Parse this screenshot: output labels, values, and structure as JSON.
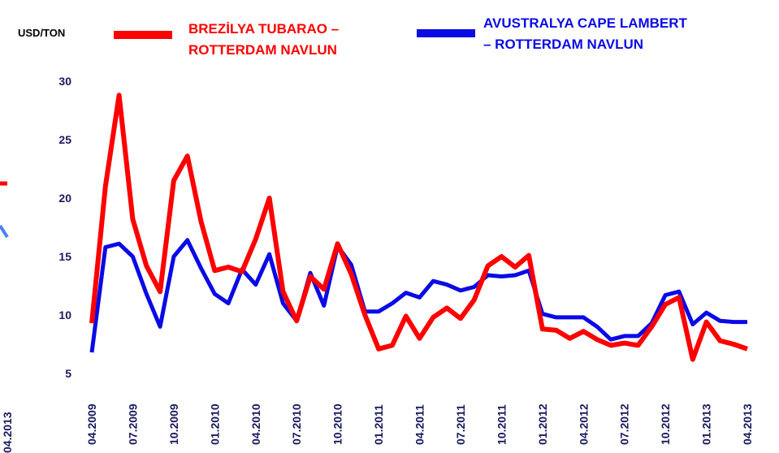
{
  "chart_data": {
    "type": "line",
    "y_unit": "USD/TON",
    "x": [
      "04.2009",
      null,
      null,
      "07.2009",
      null,
      null,
      "10.2009",
      null,
      null,
      "01.2010",
      null,
      null,
      "04.2010",
      null,
      null,
      "07.2010",
      null,
      null,
      "10.2010",
      null,
      null,
      "01.2011",
      null,
      null,
      "04.2011",
      null,
      null,
      "07.2011",
      null,
      null,
      "10.2011",
      null,
      null,
      "01.2012",
      null,
      null,
      "04.2012",
      null,
      null,
      "07.2012",
      null,
      null,
      "10.2012",
      null,
      null,
      "01.2013",
      null,
      null,
      "04.2013"
    ],
    "series": [
      {
        "name": [
          "BREZİLYA TUBARAO –",
          "ROTTERDAM NAVLUN"
        ],
        "color": "#ff0000",
        "values": [
          9.3,
          21,
          28.8,
          18.2,
          14.2,
          12,
          21.5,
          23.6,
          18,
          13.8,
          14.1,
          13.7,
          16.5,
          20,
          12,
          9.5,
          13.3,
          12.2,
          16.1,
          13.5,
          10,
          7.1,
          7.4,
          9.9,
          8,
          9.8,
          10.6,
          9.7,
          11.3,
          14.2,
          15,
          14.1,
          15.1,
          8.8,
          8.7,
          8,
          8.6,
          7.9,
          7.4,
          7.6,
          7.4,
          9,
          10.9,
          11.5,
          6.2,
          9.4,
          7.8,
          7.5,
          7.1
        ]
      },
      {
        "name": [
          "AVUSTRALYA CAPE LAMBERT",
          "– ROTTERDAM NAVLUN"
        ],
        "color": "#0a0ae6",
        "values": [
          6.8,
          15.8,
          16.1,
          15,
          11.8,
          9,
          15,
          16.4,
          14,
          11.8,
          11,
          13.9,
          12.6,
          15.2,
          11,
          9.5,
          13.6,
          10.8,
          15.9,
          14.3,
          10.3,
          10.3,
          11,
          11.9,
          11.5,
          12.9,
          12.6,
          12.1,
          12.4,
          13.4,
          13.3,
          13.4,
          13.8,
          10.1,
          9.8,
          9.8,
          9.8,
          9,
          7.9,
          8.2,
          8.2,
          9.3,
          11.7,
          12,
          9.2,
          10.2,
          9.5,
          9.4,
          9.4
        ]
      }
    ],
    "ylim": [
      5,
      30
    ],
    "yticks": [
      5,
      10,
      15,
      20,
      25,
      30
    ],
    "grid": false
  },
  "fragment": {
    "label": "04.2013"
  }
}
